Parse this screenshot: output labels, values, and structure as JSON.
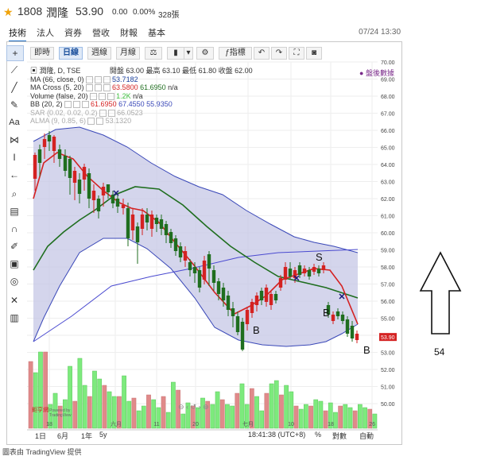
{
  "header": {
    "star": "★",
    "code": "1808",
    "name": "潤隆",
    "price": "53.90",
    "change": "0.00",
    "pct": "0.00%",
    "volume": "328張"
  },
  "tabs": [
    {
      "label": "技術"
    },
    {
      "label": "法人"
    },
    {
      "label": "資券"
    },
    {
      "label": "營收"
    },
    {
      "label": "財報"
    },
    {
      "label": "基本"
    }
  ],
  "timestamp": "07/24 13:30",
  "toolbar": {
    "intraday": "即時",
    "daily": "日線",
    "weekly": "週線",
    "monthly": "月線",
    "indicator": "指標"
  },
  "symbol_line": "潤隆, D, TSE",
  "ohlc": {
    "open_label": "開盤",
    "open": "63.00",
    "high_label": "最高",
    "high": "63.10",
    "low_label": "最低",
    "low": "61.80",
    "close_label": "收盤",
    "close": "62.00"
  },
  "after_hours": "盤後數據",
  "indicators": [
    {
      "text": "MA (66, close, 0)",
      "value": "53.7182",
      "color": "#1a3f9c"
    },
    {
      "text": "MA Cross (5, 20)",
      "value": "63.5800",
      "value2": "61.6950",
      "extra": "n/a",
      "color": "#d42222",
      "color2": "#1f6e1f"
    },
    {
      "text": "Volume (false, 20)",
      "value": "1.2K",
      "extra": "n/a",
      "color": "#3cbf3c"
    },
    {
      "text": "BB (20, 2)",
      "value": "61.6950",
      "value2": "67.4550",
      "value3": "55.9350",
      "color": "#d42222",
      "color2": "#3a48b8"
    },
    {
      "text": "SAR (0.02, 0.02, 0.2)",
      "value": "66.0523",
      "color": "#999999"
    },
    {
      "text": "ALMA (9, 0.85, 6)",
      "value": "53.1320",
      "color": "#999999"
    }
  ],
  "yaxis": [
    "70.00",
    "69.00",
    "68.00",
    "67.00",
    "66.00",
    "65.00",
    "64.00",
    "63.00",
    "62.00",
    "61.00",
    "60.00",
    "59.00",
    "58.00",
    "57.00",
    "56.00",
    "55.00",
    "54.00",
    "53.00",
    "52.00",
    "51.00",
    "50.00"
  ],
  "price_tag": "53.90",
  "xaxis": [
    "18",
    "六月",
    "11",
    "20",
    "七月",
    "10",
    "18",
    "26"
  ],
  "annotations": [
    "S",
    "B",
    "B",
    "B"
  ],
  "credit": {
    "line1": "Powered by",
    "line2": "TradingView",
    "logo": "鉅亨網"
  },
  "bottom": {
    "ranges": [
      "1日",
      "6月",
      "1年",
      "5y"
    ],
    "clock": "18:41:38 (UTC+8)",
    "percent": "%",
    "log": "對數",
    "auto": "自動"
  },
  "footer": "圖表由 TradingView 提供",
  "side_label": "54",
  "colors": {
    "up": "#d42222",
    "down": "#1f6e1f",
    "band": "#c5c7e6",
    "vol_up": "#7dea7d",
    "vol_down": "#e08a8a"
  }
}
